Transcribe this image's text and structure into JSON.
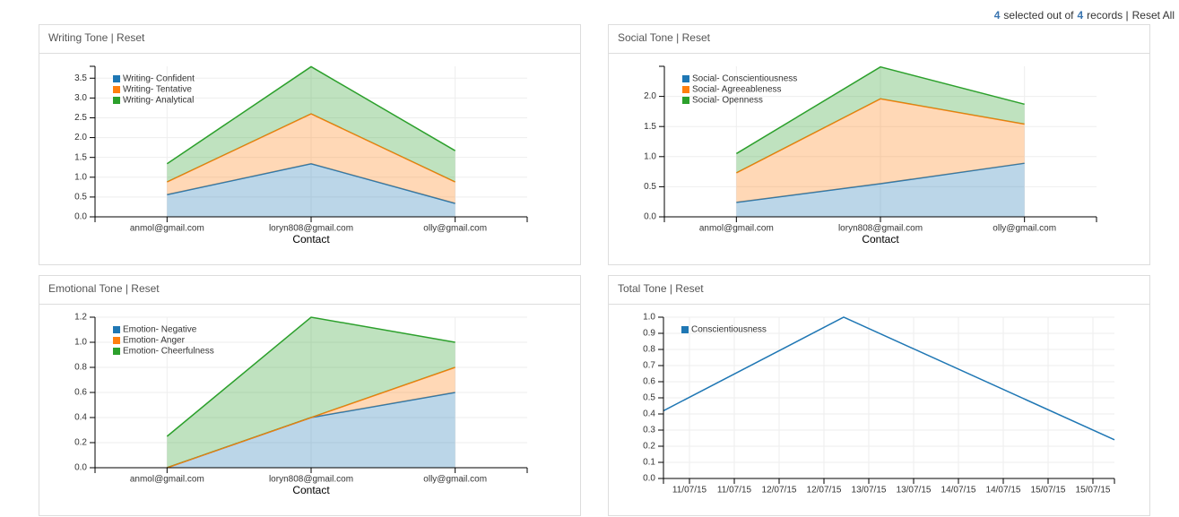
{
  "header": {
    "selected": 4,
    "text_a": "selected out of",
    "total": 4,
    "text_b": "records |",
    "reset_all": "Reset All"
  },
  "chart_data": [
    {
      "type": "stacked_area",
      "title": "Writing Tone | Reset",
      "x_label": "Contact",
      "categories": [
        "anmol@gmail.com",
        "loryn808@gmail.com",
        "olly@gmail.com"
      ],
      "series": [
        {
          "name": "Writing- Confident",
          "color": "#1f77b4",
          "values": [
            0.56,
            1.34,
            0.34
          ]
        },
        {
          "name": "Writing- Tentative",
          "color": "#ff7f0e",
          "values": [
            0.32,
            1.26,
            0.54
          ]
        },
        {
          "name": "Writing- Analytical",
          "color": "#2ca02c",
          "values": [
            0.46,
            1.19,
            0.79
          ]
        }
      ],
      "ylim": [
        0,
        3.8
      ],
      "yticks": [
        {
          "value": 0,
          "label": "0.0"
        },
        0.5,
        {
          "value": 1,
          "label": "1.0"
        },
        1.5,
        {
          "value": 2,
          "label": "2.0"
        },
        2.5,
        {
          "value": 3,
          "label": "3.0"
        },
        3.5
      ],
      "grid": true
    },
    {
      "type": "stacked_area",
      "title": "Social Tone | Reset",
      "x_label": "Contact",
      "categories": [
        "anmol@gmail.com",
        "loryn808@gmail.com",
        "olly@gmail.com"
      ],
      "series": [
        {
          "name": "Social- Conscientiousness",
          "color": "#1f77b4",
          "values": [
            0.24,
            0.55,
            0.89
          ]
        },
        {
          "name": "Social- Agreeableness",
          "color": "#ff7f0e",
          "values": [
            0.49,
            1.41,
            0.65
          ]
        },
        {
          "name": "Social- Openness",
          "color": "#2ca02c",
          "values": [
            0.32,
            0.53,
            0.33
          ]
        }
      ],
      "ylim": [
        0,
        2.5
      ],
      "yticks": [
        {
          "value": 0,
          "label": "0.0"
        },
        0.5,
        {
          "value": 1,
          "label": "1.0"
        },
        1.5,
        {
          "value": 2,
          "label": "2.0"
        }
      ],
      "grid": true
    },
    {
      "type": "stacked_area",
      "title": "Emotional Tone | Reset",
      "x_label": "Contact",
      "categories": [
        "anmol@gmail.com",
        "loryn808@gmail.com",
        "olly@gmail.com"
      ],
      "series": [
        {
          "name": "Emotion- Negative",
          "color": "#1f77b4",
          "values": [
            0,
            0.4,
            0.6
          ]
        },
        {
          "name": "Emotion- Anger",
          "color": "#ff7f0e",
          "values": [
            0,
            0,
            0.2
          ]
        },
        {
          "name": "Emotion- Cheerfulness",
          "color": "#2ca02c",
          "values": [
            0.25,
            0.8,
            0.2
          ]
        }
      ],
      "ylim": [
        0,
        1.2
      ],
      "yticks": [
        {
          "value": 0,
          "label": "0.0"
        },
        0.2,
        0.4,
        0.6,
        0.8,
        {
          "value": 1,
          "label": "1.0"
        },
        1.2
      ],
      "grid": true
    },
    {
      "type": "line",
      "title": "Total Tone | Reset",
      "x": [
        -0.29,
        1.72,
        4.74
      ],
      "series": [
        {
          "name": "Conscientiousness",
          "color": "#1f77b4",
          "values": [
            0.42,
            1.0,
            0.24
          ]
        }
      ],
      "xlim": [
        -0.29,
        4.74
      ],
      "xticks": [
        {
          "value": 0,
          "label": "11/07/15"
        },
        {
          "value": 0.5,
          "label": "11/07/15"
        },
        {
          "value": 1,
          "label": "12/07/15"
        },
        {
          "value": 1.5,
          "label": "12/07/15"
        },
        {
          "value": 2,
          "label": "13/07/15"
        },
        {
          "value": 2.5,
          "label": "13/07/15"
        },
        {
          "value": 3,
          "label": "14/07/15"
        },
        {
          "value": 3.5,
          "label": "14/07/15"
        },
        {
          "value": 4,
          "label": "15/07/15"
        },
        {
          "value": 4.5,
          "label": "15/07/15"
        }
      ],
      "ylim": [
        0,
        1.0
      ],
      "yticks": [
        {
          "value": 0,
          "label": "0.0"
        },
        0.1,
        0.2,
        0.3,
        0.4,
        0.5,
        0.6,
        0.7,
        0.8,
        0.9,
        {
          "value": 1,
          "label": "1.0"
        }
      ],
      "grid": true
    }
  ]
}
